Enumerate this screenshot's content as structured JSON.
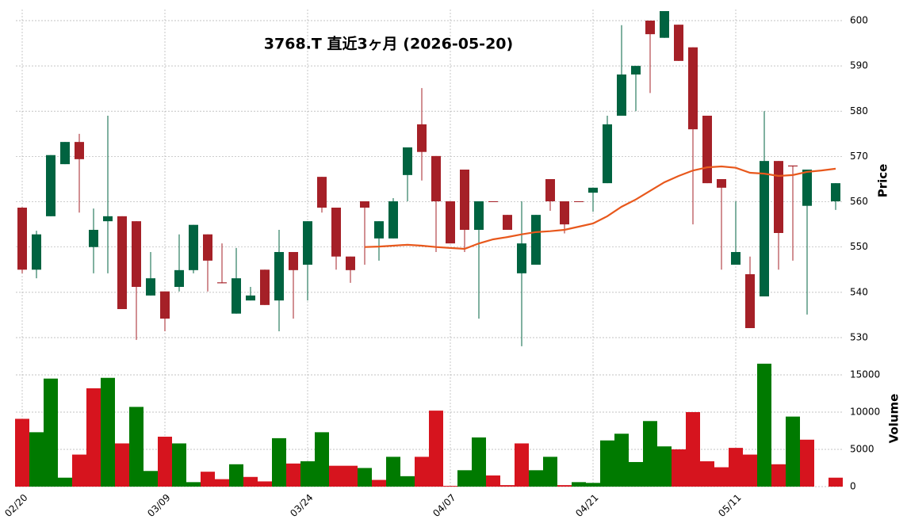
{
  "chart_data": {
    "type": "candlestick",
    "title": "3768.T  直近3ヶ月  (2026-05-20)",
    "ylabel": "Price",
    "volume_ylabel": "Volume",
    "categories": [
      "02/20",
      null,
      null,
      null,
      null,
      null,
      null,
      null,
      null,
      null,
      "03/09",
      null,
      null,
      null,
      null,
      null,
      null,
      null,
      null,
      null,
      "03/24",
      null,
      null,
      null,
      null,
      null,
      null,
      null,
      null,
      null,
      "04/07",
      null,
      null,
      null,
      null,
      null,
      null,
      null,
      null,
      null,
      "04/21",
      null,
      null,
      null,
      null,
      null,
      null,
      null,
      null,
      null,
      "05/11",
      null,
      null,
      null,
      null,
      null,
      null,
      null
    ],
    "open": [
      558.7,
      545.0,
      556.8,
      568.3,
      573.2,
      550.0,
      555.7,
      556.8,
      555.7,
      539.3,
      540.2,
      541.2,
      544.9,
      552.8,
      542.2,
      535.3,
      538.2,
      545.0,
      538.2,
      548.9,
      546.1,
      565.5,
      558.7,
      547.9,
      560.1,
      551.9,
      551.9,
      565.9,
      577.1,
      570.1,
      560.1,
      567.1,
      553.8,
      560.1,
      557.1,
      544.2,
      546.1,
      565.0,
      560.1,
      560.1,
      562.0,
      564.1,
      579.0,
      588.1,
      600.0,
      596.2,
      599.1,
      594.1,
      579.0,
      565.0,
      546.1,
      544.0,
      539.1,
      569.0,
      568.0,
      559.1,
      null,
      560.1
    ],
    "high": [
      558.8,
      553.6,
      570.3,
      573.2,
      575.0,
      558.5,
      579.0,
      556.8,
      555.7,
      548.9,
      540.2,
      552.8,
      554.9,
      552.8,
      550.8,
      549.8,
      541.2,
      545.0,
      553.8,
      548.9,
      555.7,
      565.5,
      558.7,
      547.9,
      560.1,
      555.7,
      560.8,
      572.0,
      585.1,
      570.1,
      560.1,
      567.1,
      560.1,
      560.1,
      557.1,
      560.1,
      557.1,
      565.0,
      560.1,
      560.1,
      563.1,
      579.0,
      599.0,
      590.0,
      600.0,
      602.1,
      599.1,
      594.1,
      579.0,
      565.0,
      560.1,
      547.9,
      580.0,
      569.0,
      568.0,
      567.1,
      null,
      564.1
    ],
    "low": [
      544.2,
      543.1,
      556.8,
      568.3,
      557.6,
      544.2,
      544.2,
      536.3,
      529.5,
      539.3,
      531.4,
      540.2,
      544.2,
      540.2,
      542.0,
      535.3,
      538.2,
      537.2,
      531.4,
      534.2,
      538.2,
      557.6,
      545.0,
      542.1,
      546.1,
      547.0,
      551.9,
      560.1,
      564.7,
      548.9,
      550.8,
      548.9,
      534.2,
      560.0,
      553.8,
      528.1,
      546.1,
      558.0,
      553.0,
      560.0,
      557.8,
      564.1,
      579.0,
      580.0,
      584.0,
      596.2,
      591.1,
      555.0,
      564.1,
      545.0,
      546.1,
      532.1,
      539.1,
      545.0,
      547.0,
      535.1,
      null,
      558.2
    ],
    "close": [
      545.0,
      552.8,
      570.3,
      573.2,
      569.4,
      553.8,
      556.8,
      536.3,
      541.2,
      543.1,
      534.2,
      544.9,
      554.9,
      547.0,
      542.0,
      543.1,
      539.3,
      537.2,
      548.9,
      544.9,
      555.7,
      558.7,
      547.9,
      544.9,
      558.7,
      555.7,
      560.1,
      572.0,
      571.0,
      560.1,
      550.8,
      553.8,
      560.1,
      560.0,
      553.8,
      550.8,
      557.1,
      560.1,
      555.0,
      560.0,
      563.1,
      577.1,
      588.1,
      590.0,
      597.0,
      602.1,
      591.1,
      576.0,
      564.1,
      563.1,
      548.9,
      532.1,
      569.0,
      553.1,
      567.8,
      567.1,
      null,
      564.1
    ],
    "up_color": "#006340",
    "down_color": "#a52027",
    "moving_average": {
      "color": "#e8581c",
      "values": [
        null,
        null,
        null,
        null,
        null,
        null,
        null,
        null,
        null,
        null,
        null,
        null,
        null,
        null,
        null,
        null,
        null,
        null,
        null,
        null,
        null,
        null,
        null,
        null,
        550.0,
        550.1,
        550.3,
        550.5,
        550.3,
        550.0,
        549.8,
        549.6,
        550.8,
        551.7,
        552.2,
        552.8,
        553.3,
        553.5,
        553.8,
        554.5,
        555.2,
        556.8,
        558.9,
        560.5,
        562.4,
        564.3,
        565.7,
        566.9,
        567.6,
        567.8,
        567.5,
        566.4,
        566.2,
        565.7,
        565.9,
        566.6,
        566.9,
        567.3
      ]
    },
    "volume": {
      "values": [
        9100,
        7300,
        14500,
        1200,
        4300,
        13200,
        14600,
        5800,
        10700,
        2100,
        6700,
        5800,
        600,
        2000,
        1000,
        3000,
        1300,
        700,
        6500,
        3100,
        3400,
        7300,
        2800,
        2800,
        2500,
        900,
        4000,
        1400,
        4000,
        10200,
        100,
        2200,
        6600,
        1500,
        200,
        5800,
        2200,
        4000,
        200,
        600,
        500,
        6200,
        7100,
        3300,
        8800,
        5400,
        5000,
        10000,
        3400,
        2600,
        5200,
        4300,
        16500,
        3000,
        9400,
        6300,
        null,
        1200
      ],
      "colors": [
        "#d6141e",
        "#007a00",
        "#007a00",
        "#007a00",
        "#d6141e",
        "#d6141e",
        "#007a00",
        "#d6141e",
        "#007a00",
        "#007a00",
        "#d6141e",
        "#007a00",
        "#007a00",
        "#d6141e",
        "#d6141e",
        "#007a00",
        "#d6141e",
        "#d6141e",
        "#007a00",
        "#d6141e",
        "#007a00",
        "#007a00",
        "#d6141e",
        "#d6141e",
        "#007a00",
        "#d6141e",
        "#007a00",
        "#007a00",
        "#d6141e",
        "#d6141e",
        "#d6141e",
        "#007a00",
        "#007a00",
        "#d6141e",
        "#d6141e",
        "#d6141e",
        "#007a00",
        "#007a00",
        "#d6141e",
        "#007a00",
        "#007a00",
        "#007a00",
        "#007a00",
        "#007a00",
        "#007a00",
        "#007a00",
        "#d6141e",
        "#d6141e",
        "#d6141e",
        "#d6141e",
        "#d6141e",
        "#d6141e",
        "#007a00",
        "#d6141e",
        "#007a00",
        "#d6141e",
        null,
        "#d6141e"
      ],
      "ylim": [
        0,
        18190
      ],
      "yticks": [
        0,
        5000,
        10000,
        15000
      ]
    },
    "ylim": [
      527.6,
      602.45
    ],
    "yticks": [
      530,
      540,
      550,
      560,
      570,
      580,
      590,
      600
    ],
    "grid": true
  }
}
